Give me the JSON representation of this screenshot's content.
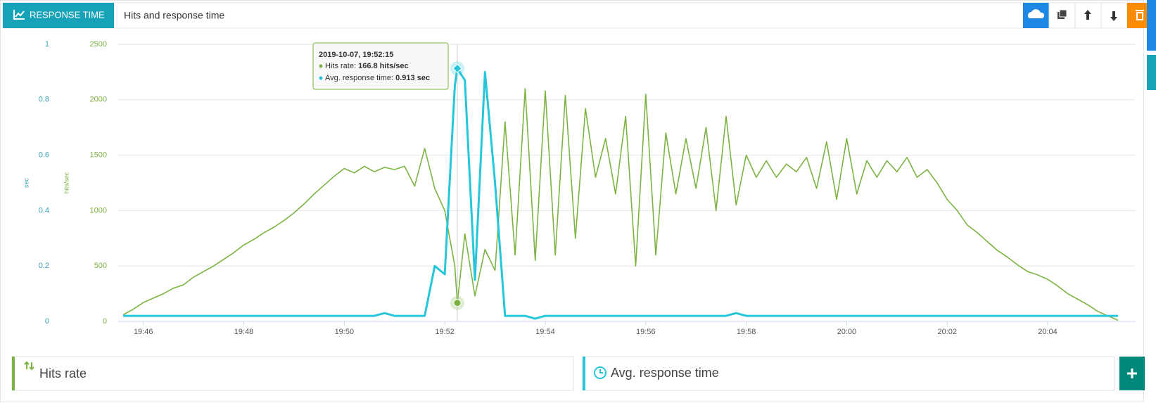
{
  "header": {
    "tab": "RESPONSE TIME",
    "title": "Hits and response time"
  },
  "chart_data": {
    "type": "line",
    "ylabel": "hits/sec",
    "y2label": "sec",
    "x": [
      1185.6,
      1185.8,
      1186,
      1186.2,
      1186.4,
      1186.6,
      1186.8,
      1187,
      1187.2,
      1187.4,
      1187.6,
      1187.8,
      1188,
      1188.2,
      1188.4,
      1188.6,
      1188.8,
      1189,
      1189.2,
      1189.4,
      1189.6,
      1189.8,
      1190,
      1190.2,
      1190.4,
      1190.6,
      1190.8,
      1191,
      1191.2,
      1191.4,
      1191.6,
      1191.8,
      1192,
      1192.2,
      1192.25,
      1192.4,
      1192.6,
      1192.8,
      1193,
      1193.2,
      1193.4,
      1193.6,
      1193.8,
      1194,
      1194.2,
      1194.4,
      1194.6,
      1194.8,
      1195,
      1195.2,
      1195.4,
      1195.6,
      1195.8,
      1196,
      1196.2,
      1196.4,
      1196.6,
      1196.8,
      1197,
      1197.2,
      1197.4,
      1197.6,
      1197.8,
      1198,
      1198.2,
      1198.4,
      1198.6,
      1198.8,
      1199,
      1199.2,
      1199.4,
      1199.6,
      1199.8,
      1200,
      1200.2,
      1200.4,
      1200.6,
      1200.8,
      1201,
      1201.2,
      1201.4,
      1201.6,
      1201.8,
      1202,
      1202.2,
      1202.4,
      1202.6,
      1202.8,
      1203,
      1203.2,
      1203.4,
      1203.6,
      1203.8,
      1204,
      1204.2,
      1204.4,
      1204.6,
      1204.8,
      1205,
      1205.2,
      1205.4
    ],
    "series": [
      {
        "name": "Hits rate",
        "color": "#7cb342",
        "axis": "y",
        "values": [
          60,
          110,
          170,
          210,
          250,
          300,
          330,
          400,
          450,
          500,
          560,
          620,
          690,
          740,
          800,
          850,
          910,
          980,
          1060,
          1150,
          1230,
          1310,
          1380,
          1340,
          1400,
          1350,
          1390,
          1370,
          1400,
          1220,
          1560,
          1200,
          1000,
          500,
          166.8,
          790,
          230,
          650,
          460,
          1800,
          600,
          2100,
          550,
          2080,
          600,
          2040,
          750,
          1920,
          1300,
          1650,
          1150,
          1850,
          500,
          2050,
          600,
          1700,
          1150,
          1650,
          1200,
          1750,
          1000,
          1850,
          1050,
          1500,
          1300,
          1450,
          1300,
          1420,
          1350,
          1480,
          1200,
          1620,
          1100,
          1650,
          1150,
          1450,
          1300,
          1450,
          1350,
          1480,
          1300,
          1370,
          1250,
          1100,
          1000,
          870,
          800,
          720,
          640,
          580,
          510,
          450,
          420,
          380,
          320,
          250,
          200,
          150,
          90,
          50,
          10
        ]
      },
      {
        "name": "Avg. response time",
        "color": "#26c6da",
        "axis": "y2",
        "values": [
          0.02,
          0.02,
          0.02,
          0.02,
          0.02,
          0.02,
          0.02,
          0.02,
          0.02,
          0.02,
          0.02,
          0.02,
          0.02,
          0.02,
          0.02,
          0.02,
          0.02,
          0.02,
          0.02,
          0.02,
          0.02,
          0.02,
          0.02,
          0.02,
          0.02,
          0.02,
          0.03,
          0.02,
          0.02,
          0.02,
          0.02,
          0.2,
          0.17,
          0.85,
          0.913,
          0.87,
          0.15,
          0.9,
          0.5,
          0.02,
          0.02,
          0.02,
          0.01,
          0.02,
          0.02,
          0.02,
          0.02,
          0.02,
          0.02,
          0.02,
          0.02,
          0.02,
          0.02,
          0.02,
          0.02,
          0.02,
          0.02,
          0.02,
          0.02,
          0.02,
          0.02,
          0.02,
          0.03,
          0.02,
          0.02,
          0.02,
          0.02,
          0.02,
          0.02,
          0.02,
          0.02,
          0.02,
          0.02,
          0.02,
          0.02,
          0.02,
          0.02,
          0.02,
          0.02,
          0.02,
          0.02,
          0.02,
          0.02,
          0.02,
          0.02,
          0.02,
          0.02,
          0.02,
          0.02,
          0.02,
          0.02,
          0.02,
          0.02,
          0.02,
          0.02,
          0.02,
          0.02,
          0.02,
          0.02,
          0.02,
          0.02
        ]
      }
    ],
    "xlim": [
      1185.5,
      1205.75
    ],
    "xticks": [
      {
        "value": 1186,
        "label": "19:46"
      },
      {
        "value": 1188,
        "label": "19:48"
      },
      {
        "value": 1190,
        "label": "19:50"
      },
      {
        "value": 1192,
        "label": "19:52"
      },
      {
        "value": 1194,
        "label": "19:54"
      },
      {
        "value": 1196,
        "label": "19:56"
      },
      {
        "value": 1198,
        "label": "19:58"
      },
      {
        "value": 1200,
        "label": "20:00"
      },
      {
        "value": 1202,
        "label": "20:02"
      },
      {
        "value": 1204,
        "label": "20:04"
      }
    ],
    "ylim": [
      0,
      2500
    ],
    "yticks": [
      0,
      500,
      1000,
      1500,
      2000,
      2500
    ],
    "y2lim": [
      0,
      1
    ],
    "y2ticks": [
      0,
      0.2,
      0.4,
      0.6,
      0.8,
      1
    ],
    "grid": true,
    "crosshair_x": 1192.25,
    "tooltip": {
      "title": "2019-10-07, 19:52:15",
      "hits_label": "Hits rate:",
      "hits_value": "166.8 hits/sec",
      "rt_label": "Avg. response time:",
      "rt_value": "0.913 sec"
    }
  }
}
